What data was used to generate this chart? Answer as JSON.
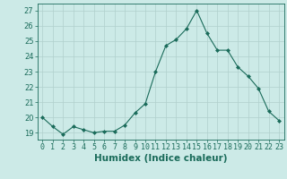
{
  "x": [
    0,
    1,
    2,
    3,
    4,
    5,
    6,
    7,
    8,
    9,
    10,
    11,
    12,
    13,
    14,
    15,
    16,
    17,
    18,
    19,
    20,
    21,
    22,
    23
  ],
  "y": [
    20.0,
    19.4,
    18.9,
    19.4,
    19.2,
    19.0,
    19.1,
    19.1,
    19.5,
    20.3,
    20.9,
    23.0,
    24.7,
    25.1,
    25.8,
    27.0,
    25.5,
    24.4,
    24.4,
    23.3,
    22.7,
    21.9,
    20.4,
    19.8
  ],
  "line_color": "#1a6b5a",
  "marker": "D",
  "marker_size": 2,
  "background_color": "#cceae7",
  "grid_color": "#b0d0cc",
  "xlabel": "Humidex (Indice chaleur)",
  "ylabel_ticks": [
    19,
    20,
    21,
    22,
    23,
    24,
    25,
    26,
    27
  ],
  "xlim": [
    -0.5,
    23.5
  ],
  "ylim": [
    18.55,
    27.45
  ],
  "tick_fontsize": 6.0,
  "xlabel_fontsize": 7.5
}
